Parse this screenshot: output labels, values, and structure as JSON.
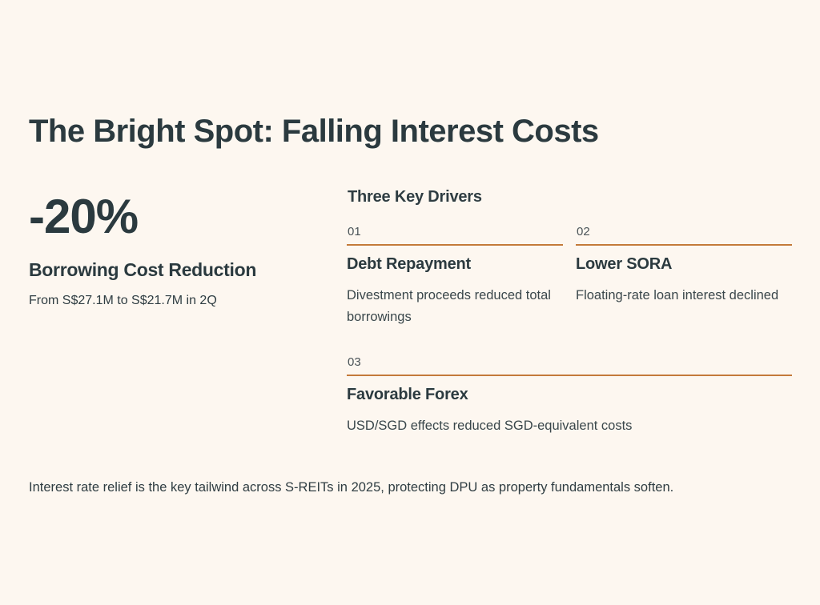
{
  "title": "The Bright Spot: Falling Interest Costs",
  "highlight": {
    "stat": "-20%",
    "label": "Borrowing Cost Reduction",
    "detail": "From S$27.1M to S$21.7M in 2Q"
  },
  "drivers": {
    "heading": "Three Key Drivers",
    "items": [
      {
        "number": "01",
        "title": "Debt Repayment",
        "description": "Divestment proceeds reduced total borrowings"
      },
      {
        "number": "02",
        "title": "Lower SORA",
        "description": "Floating-rate loan interest declined"
      },
      {
        "number": "03",
        "title": "Favorable Forex",
        "description": "USD/SGD effects reduced SGD-equivalent costs"
      }
    ]
  },
  "footnote": "Interest rate relief is the key tailwind across S-REITs in 2025, protecting DPU as property fundamentals soften.",
  "colors": {
    "background": "#fdf7f0",
    "text": "#2b3a3f",
    "accent": "#c47a3a"
  }
}
